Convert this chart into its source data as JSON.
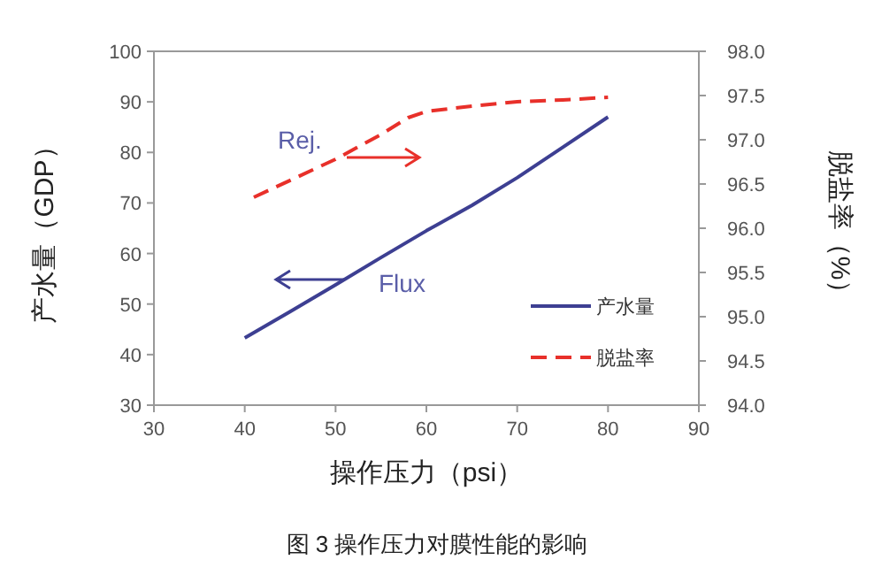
{
  "chart_data": {
    "type": "line",
    "xlabel": "操作压力（psi）",
    "ylabel": "产水量（GDP）",
    "y2label": "脱盐率（%）",
    "xlim": [
      30,
      90
    ],
    "xticks": [
      30,
      40,
      50,
      60,
      70,
      80,
      90
    ],
    "ylim": [
      30,
      100
    ],
    "yticks": [
      30,
      40,
      50,
      60,
      70,
      80,
      90,
      100
    ],
    "y2lim": [
      94.0,
      98.0
    ],
    "y2ticks": [
      {
        "value": 94,
        "label": "94.0"
      },
      {
        "value": 94.5,
        "label": "94.5"
      },
      {
        "value": 95,
        "label": "95.0"
      },
      {
        "value": 95.5,
        "label": "95.5"
      },
      {
        "value": 96,
        "label": "96.0"
      },
      {
        "value": 96.5,
        "label": "96.5"
      },
      {
        "value": 97,
        "label": "97.0"
      },
      {
        "value": 97.5,
        "label": "97.5"
      },
      {
        "value": 98,
        "label": "98.0"
      }
    ],
    "series": [
      {
        "name": "产水量",
        "color": "#3d3f92",
        "line_style": "solid",
        "x": [
          40,
          45,
          50,
          55,
          60,
          65,
          70,
          75,
          80
        ],
        "values": [
          43.3,
          48.5,
          53.8,
          59.2,
          64.5,
          69.5,
          75,
          81,
          87
        ]
      },
      {
        "name": "脱盐率",
        "color": "#e8302a",
        "line_style": "dashed",
        "axis": "y2",
        "x": [
          41,
          50,
          55,
          58,
          60,
          65,
          70,
          75,
          80
        ],
        "values": [
          96.35,
          96.78,
          97.06,
          97.25,
          97.32,
          97.38,
          97.43,
          97.45,
          97.48
        ]
      }
    ],
    "annotations": [
      "Rej.",
      "Flux",
      "图 3 操作压力对膜性能的影响"
    ],
    "legend": "bottom right",
    "grid": false
  }
}
